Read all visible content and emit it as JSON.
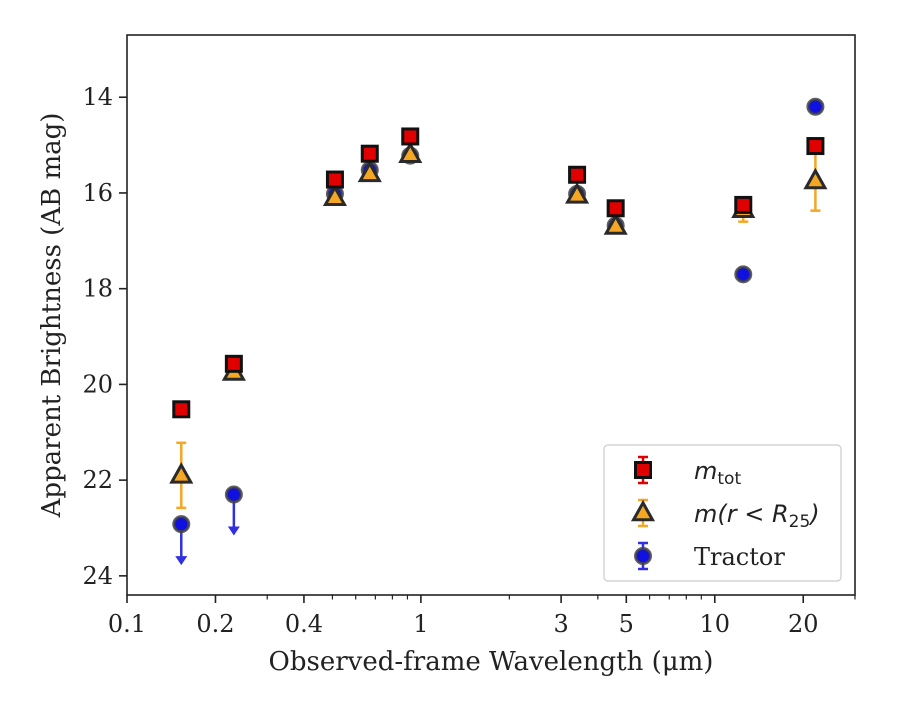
{
  "chart_data": {
    "type": "scatter",
    "xlabel": "Observed-frame Wavelength (μm)",
    "ylabel": "Apparent Brightness (AB mag)",
    "xscale": "log",
    "xlim": [
      0.1,
      30
    ],
    "ylim": [
      12.7,
      24.4
    ],
    "y_inverted": true,
    "x_ticks": [
      {
        "value": 0.1,
        "label": "0.1"
      },
      {
        "value": 0.2,
        "label": "0.2"
      },
      {
        "value": 0.4,
        "label": "0.4"
      },
      {
        "value": 1,
        "label": "1"
      },
      {
        "value": 3,
        "label": "3"
      },
      {
        "value": 5,
        "label": "5"
      },
      {
        "value": 10,
        "label": "10"
      },
      {
        "value": 20,
        "label": "20"
      }
    ],
    "y_ticks": [
      {
        "value": 14,
        "label": "14"
      },
      {
        "value": 16,
        "label": "16"
      },
      {
        "value": 18,
        "label": "18"
      },
      {
        "value": 20,
        "label": "20"
      },
      {
        "value": 22,
        "label": "22"
      },
      {
        "value": 24,
        "label": "24"
      }
    ],
    "grid": false,
    "legend_position": "bottom-right",
    "series": [
      {
        "name": "m_tot",
        "legend_main": "m",
        "legend_sub": "tot",
        "legend_tail": "",
        "marker": "square",
        "face_color": "#e00000",
        "edge_color": "#111111",
        "err_color": "#e00000",
        "points": [
          {
            "x": 0.153,
            "y": 20.52,
            "err": 0.05
          },
          {
            "x": 0.231,
            "y": 19.57,
            "err": 0.05
          },
          {
            "x": 0.51,
            "y": 15.72,
            "err": 0.03
          },
          {
            "x": 0.67,
            "y": 15.18,
            "err": 0.03
          },
          {
            "x": 0.92,
            "y": 14.82,
            "err": 0.03
          },
          {
            "x": 3.4,
            "y": 15.62,
            "err": 0.03
          },
          {
            "x": 4.6,
            "y": 16.32,
            "err": 0.03
          },
          {
            "x": 12.5,
            "y": 16.25,
            "err": 0.05
          },
          {
            "x": 22.0,
            "y": 15.02,
            "err": 0.05
          }
        ]
      },
      {
        "name": "m(r < R_25)",
        "legend_main": "m(r < R",
        "legend_sub": "25",
        "legend_tail": ")",
        "marker": "triangle",
        "face_color": "#f5a623",
        "edge_color": "#2a2a2a",
        "err_color": "#f5a623",
        "points": [
          {
            "x": 0.153,
            "y": 21.9,
            "err": 0.68
          },
          {
            "x": 0.231,
            "y": 19.75,
            "err": 0.06
          },
          {
            "x": 0.51,
            "y": 16.1,
            "err": 0.03
          },
          {
            "x": 0.67,
            "y": 15.6,
            "err": 0.03
          },
          {
            "x": 0.92,
            "y": 15.2,
            "err": 0.03
          },
          {
            "x": 3.4,
            "y": 16.05,
            "err": 0.03
          },
          {
            "x": 4.6,
            "y": 16.7,
            "err": 0.03
          },
          {
            "x": 12.5,
            "y": 16.35,
            "err": 0.25
          },
          {
            "x": 22.0,
            "y": 15.75,
            "err": 0.62
          }
        ]
      },
      {
        "name": "Tractor",
        "legend_main": "Tractor",
        "legend_sub": "",
        "legend_tail": "",
        "marker": "circle",
        "face_color": "#1010e0",
        "edge_color": "#444444",
        "err_color": "#3030e0",
        "points": [
          {
            "x": 0.153,
            "y": 22.92,
            "upper_limit": true
          },
          {
            "x": 0.231,
            "y": 22.3,
            "upper_limit": true
          },
          {
            "x": 0.51,
            "y": 16.02,
            "err": 0.03
          },
          {
            "x": 0.67,
            "y": 15.52,
            "err": 0.03
          },
          {
            "x": 0.92,
            "y": 15.22,
            "err": 0.03
          },
          {
            "x": 3.4,
            "y": 16.02,
            "err": 0.03
          },
          {
            "x": 4.6,
            "y": 16.68,
            "err": 0.03
          },
          {
            "x": 12.5,
            "y": 17.7,
            "err": 0.04
          },
          {
            "x": 22.0,
            "y": 14.2,
            "err": 0.04
          }
        ]
      }
    ]
  }
}
